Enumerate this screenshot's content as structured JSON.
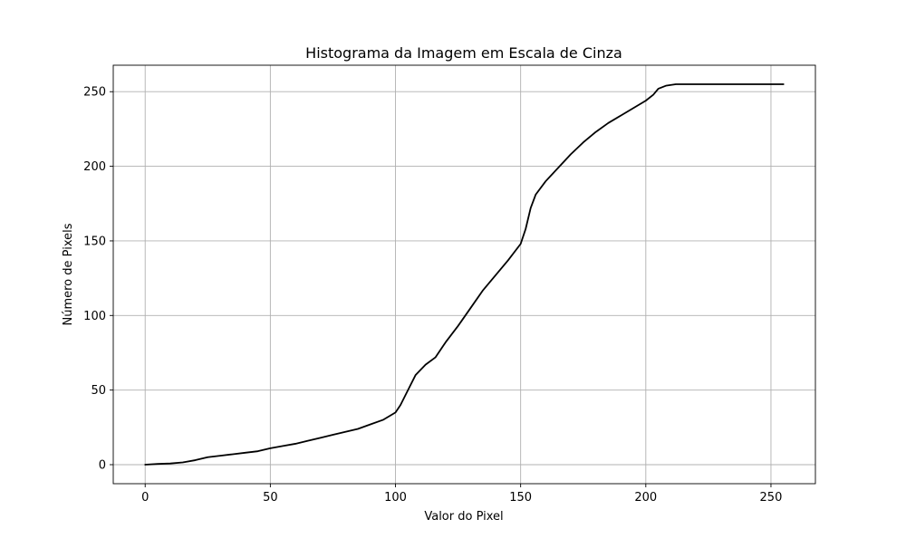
{
  "chart_data": {
    "type": "line",
    "title": "Histograma da Imagem em Escala de Cinza",
    "xlabel": "Valor do Pixel",
    "ylabel": "Número de Pixels",
    "xlim": [
      -12.75,
      267.75
    ],
    "ylim": [
      -12.75,
      267.75
    ],
    "x_ticks": [
      0,
      50,
      100,
      150,
      200,
      250
    ],
    "y_ticks": [
      0,
      50,
      100,
      150,
      200,
      250
    ],
    "x_tick_labels": [
      "0",
      "50",
      "100",
      "150",
      "200",
      "250"
    ],
    "y_tick_labels": [
      "0",
      "50",
      "100",
      "150",
      "200",
      "250"
    ],
    "grid": true,
    "line_color": "#000000",
    "series": [
      {
        "x": [
          0,
          5,
          10,
          15,
          20,
          25,
          30,
          35,
          40,
          45,
          50,
          55,
          60,
          65,
          70,
          75,
          80,
          85,
          90,
          95,
          100,
          102,
          105,
          108,
          112,
          116,
          120,
          125,
          130,
          135,
          140,
          145,
          150,
          152,
          154,
          156,
          160,
          165,
          170,
          175,
          180,
          185,
          190,
          195,
          200,
          203,
          205,
          208,
          212,
          220,
          230,
          240,
          250,
          255
        ],
        "y": [
          0,
          0.5,
          0.8,
          1.5,
          3,
          5,
          6,
          7,
          8,
          9,
          11,
          12.5,
          14,
          16,
          18,
          20,
          22,
          24,
          27,
          30,
          35,
          40,
          50,
          60,
          67,
          72,
          82,
          93,
          105,
          117,
          127,
          137,
          148,
          158,
          172,
          181,
          190,
          199,
          208,
          216,
          223,
          229,
          234,
          239,
          244,
          248,
          252,
          254,
          255,
          255,
          255,
          255,
          255,
          255
        ]
      }
    ]
  }
}
